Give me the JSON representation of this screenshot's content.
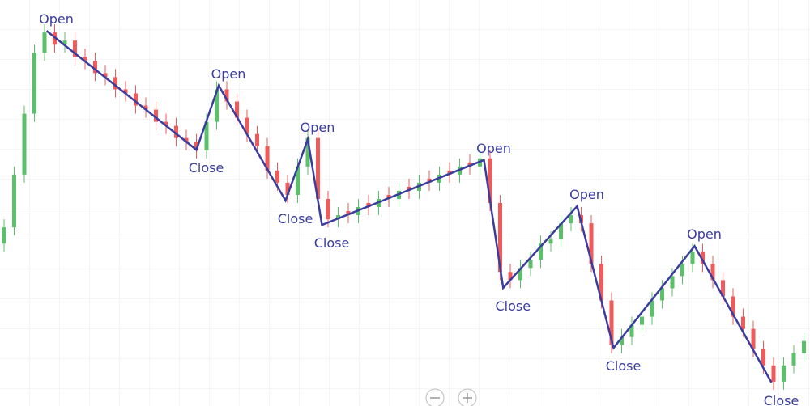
{
  "chart_data": {
    "type": "candlestick",
    "x": [
      0,
      1,
      2,
      3,
      4,
      5,
      6,
      7,
      8,
      9,
      10,
      11,
      12,
      13,
      14,
      15,
      16,
      17,
      18,
      19,
      20,
      21,
      22,
      23,
      24,
      25,
      26,
      27,
      28,
      29,
      30,
      31,
      32,
      33,
      34,
      35,
      36,
      37,
      38,
      39,
      40,
      41,
      42,
      43,
      44,
      45,
      46,
      47,
      48,
      49,
      50,
      51,
      52,
      53,
      54,
      55,
      56,
      57,
      58,
      59,
      60,
      61,
      62,
      63,
      64,
      65,
      66,
      67,
      68,
      69,
      70,
      71,
      72,
      73,
      74,
      75,
      76,
      77,
      78,
      79
    ],
    "open": [
      40,
      44,
      57,
      72,
      87,
      92,
      89,
      90,
      86,
      85,
      82,
      81,
      78,
      77,
      74,
      73,
      70,
      69,
      66,
      65,
      63,
      70,
      78,
      75,
      71,
      67,
      64,
      58,
      55,
      52,
      59,
      66,
      51,
      46,
      48,
      47,
      50,
      49,
      52,
      51,
      54,
      53,
      56,
      55,
      58,
      57,
      60,
      59,
      61,
      50,
      33,
      31,
      34,
      36,
      40,
      41,
      45,
      47,
      45,
      35,
      26,
      15,
      17,
      20,
      22,
      26,
      29,
      32,
      35,
      38,
      35,
      31,
      27,
      22,
      19,
      14,
      10,
      6,
      10,
      13
    ],
    "high": [
      46,
      59,
      74,
      89,
      94,
      94,
      92,
      92,
      88,
      87,
      84,
      83,
      80,
      79,
      76,
      75,
      72,
      71,
      68,
      67,
      72,
      80,
      80,
      77,
      73,
      69,
      66,
      60,
      57,
      61,
      68,
      68,
      53,
      49,
      50,
      51,
      52,
      53,
      54,
      55,
      56,
      57,
      58,
      59,
      60,
      61,
      62,
      63,
      63,
      52,
      35,
      36,
      38,
      42,
      43,
      47,
      49,
      49,
      47,
      37,
      28,
      19,
      22,
      24,
      28,
      31,
      34,
      37,
      40,
      40,
      37,
      33,
      29,
      24,
      21,
      16,
      12,
      12,
      15,
      18
    ],
    "low": [
      38,
      42,
      55,
      70,
      85,
      87,
      87,
      84,
      83,
      80,
      79,
      76,
      75,
      72,
      71,
      68,
      67,
      64,
      63,
      61,
      61,
      68,
      73,
      69,
      65,
      62,
      56,
      53,
      50,
      50,
      57,
      49,
      44,
      44,
      45,
      45,
      47,
      47,
      49,
      49,
      51,
      51,
      53,
      53,
      55,
      55,
      57,
      57,
      48,
      31,
      29,
      29,
      32,
      34,
      38,
      39,
      43,
      43,
      33,
      24,
      13,
      13,
      15,
      18,
      20,
      24,
      27,
      30,
      33,
      33,
      29,
      25,
      20,
      17,
      12,
      8,
      4,
      4,
      8,
      11
    ],
    "close": [
      44,
      57,
      72,
      87,
      92,
      89,
      90,
      86,
      85,
      82,
      81,
      78,
      77,
      74,
      73,
      70,
      69,
      66,
      65,
      63,
      70,
      78,
      75,
      71,
      67,
      64,
      58,
      55,
      52,
      59,
      66,
      51,
      46,
      47,
      47,
      49,
      49,
      51,
      51,
      53,
      53,
      55,
      55,
      57,
      57,
      59,
      59,
      61,
      50,
      33,
      31,
      34,
      36,
      40,
      41,
      45,
      47,
      45,
      35,
      26,
      15,
      17,
      20,
      22,
      26,
      29,
      32,
      35,
      38,
      35,
      31,
      27,
      22,
      19,
      14,
      10,
      6,
      10,
      13,
      16
    ],
    "up_color": "#5cbf6a",
    "down_color": "#ef5a5a",
    "xlim": [
      -0.4,
      79.6
    ],
    "ylim": [
      0,
      100
    ],
    "zigzag": {
      "color": "#3a3d9e",
      "x": [
        4.2,
        19,
        21.2,
        27.8,
        30,
        31.4,
        47.4,
        49.3,
        56.6,
        60.2,
        68.2,
        75.8
      ],
      "values": [
        92.4,
        63.1,
        78.9,
        50.6,
        65.7,
        44.6,
        60.6,
        29.1,
        49.2,
        14.3,
        39.4,
        5.8
      ],
      "labels": [
        "Open",
        "Close",
        "Open",
        "Close",
        "Open",
        "Close",
        "Open",
        "Close",
        "Open",
        "Close",
        "Open",
        "Close"
      ]
    }
  }
}
